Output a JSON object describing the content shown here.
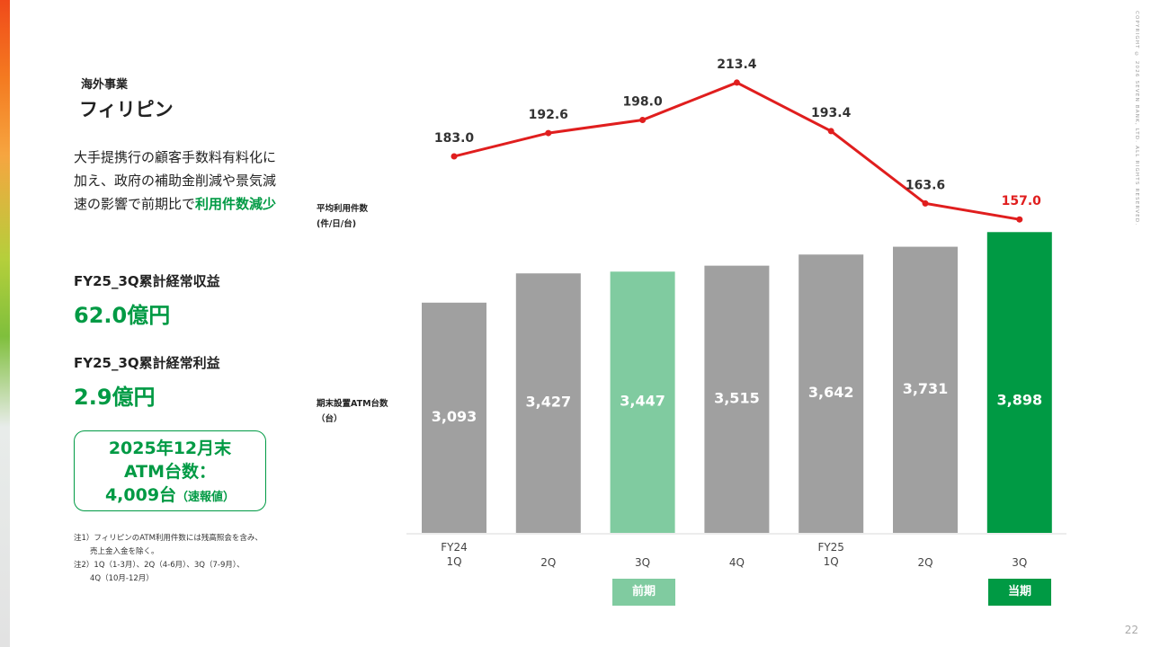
{
  "header": {
    "section": "海外事業",
    "title": "フィリピン"
  },
  "description": {
    "text_line1": "大手提携行の顧客手数料有料化に",
    "text_line2": "加え、政府の補助金削減や景気減",
    "text_line3_prefix": "速の影響で前期比で",
    "highlight": "利用件数減少"
  },
  "metrics": {
    "revenue_label": "FY25_3Q累計経常収益",
    "revenue_value": "62.0億円",
    "profit_label": "FY25_3Q累計経常利益",
    "profit_value": "2.9億円"
  },
  "atm_box": {
    "line1": "2025年12月末",
    "line2": "ATM台数：",
    "line3_value": "4,009台",
    "line3_note": "（速報値）"
  },
  "notes": {
    "note1_line1": "注1）フィリピンのATM利用件数には残高照会を含み、",
    "note1_line2": "売上金入金を除く。",
    "note2_line1": "注2）1Q（1-3月）、2Q（4-6月）、3Q（7-9月）、",
    "note2_line2": "4Q（10月-12月）"
  },
  "axis_captions": {
    "line_caption1": "平均利用件数",
    "line_caption2": "(件/日/台)",
    "bar_caption1": "期末設置ATM台数",
    "bar_caption2": "（台）"
  },
  "tags": {
    "previous": "前期",
    "current": "当期"
  },
  "copyright": "COPYRIGHT © 2026 SEVEN BANK, LTD. ALL RIGHTS RESERVED.",
  "page_number": "22",
  "colors": {
    "accent_green": "#009a44",
    "light_green": "#80cba0",
    "bar_gray": "#a0a0a0",
    "line_red": "#e01e1e"
  },
  "chart_data": {
    "type": "bar",
    "categories": [
      "FY24\n1Q",
      "2Q",
      "3Q",
      "4Q",
      "FY25\n1Q",
      "2Q",
      "3Q"
    ],
    "series": [
      {
        "name": "期末設置ATM台数",
        "type": "bar",
        "values": [
          3093,
          3427,
          3447,
          3515,
          3642,
          3731,
          3898
        ],
        "labels": [
          "3,093",
          "3,427",
          "3,447",
          "3,515",
          "3,642",
          "3,731",
          "3,898"
        ]
      },
      {
        "name": "平均利用件数",
        "type": "line",
        "values": [
          183.0,
          192.6,
          198.0,
          213.4,
          193.4,
          163.6,
          157.0
        ],
        "labels": [
          "183.0",
          "192.6",
          "198.0",
          "213.4",
          "193.4",
          "163.6",
          "157.0"
        ]
      }
    ],
    "highlight": {
      "previous_index": 2,
      "current_index": 6
    }
  }
}
